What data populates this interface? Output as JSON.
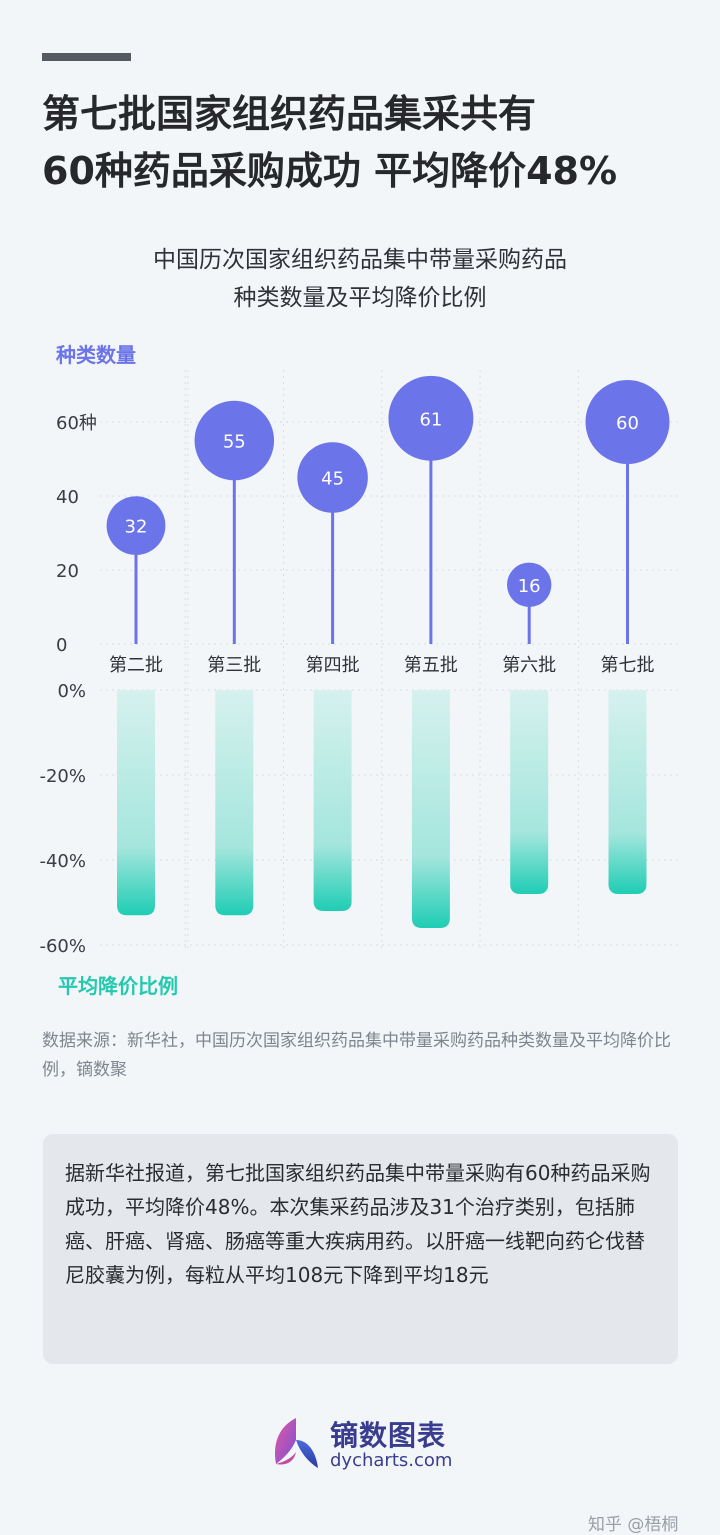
{
  "header": {
    "title_line1": "第七批国家组织药品集采共有",
    "title_line2": "60种药品采购成功 平均降价48%"
  },
  "chart_data": {
    "type": "bar",
    "title_line1": "中国历次国家组织药品集中带量采购药品",
    "title_line2": "种类数量及平均降价比例",
    "categories": [
      "第二批",
      "第三批",
      "第四批",
      "第五批",
      "第六批",
      "第七批"
    ],
    "series": [
      {
        "name": "种类数量",
        "values": [
          32,
          55,
          45,
          61,
          16,
          60
        ],
        "color": "#6b74e8"
      },
      {
        "name": "平均降价比例",
        "values": [
          -53,
          -53,
          -52,
          -56,
          -48,
          -48
        ],
        "color": "#2fd1bb"
      }
    ],
    "top_axis": {
      "title": "种类数量",
      "ticks": [
        "0",
        "20",
        "40",
        "60种"
      ],
      "tick_values": [
        0,
        20,
        40,
        60
      ],
      "ylim": [
        0,
        70
      ]
    },
    "bottom_axis": {
      "title": "平均降价比例",
      "ticks": [
        "0%",
        "-20%",
        "-40%",
        "-60%"
      ],
      "tick_values": [
        0,
        -20,
        -40,
        -60
      ],
      "ylim": [
        -60,
        0
      ]
    },
    "grid": true,
    "colors": {
      "count": "#6b74e8",
      "discount": "#2fd1bb",
      "discount_light": "#c9eeea"
    }
  },
  "source_text": "数据来源：新华社，中国历次国家组织药品集中带量采购药品种类数量及平均降价比例，镝数聚",
  "note_text": "据新华社报道，第七批国家组织药品集中带量采购有60种药品采购成功，平均降价48%。本次集采药品涉及31个治疗类别，包括肺癌、肝癌、肾癌、肠癌等重大疾病用药。以肝癌一线靶向药仑伐替尼胶囊为例，每粒从平均108元下降到平均18元",
  "brand": {
    "name_cn": "镝数图表",
    "name_en": "dycharts.com",
    "icon": "butterfly-logo-icon"
  },
  "credit": "知乎 @梧桐"
}
